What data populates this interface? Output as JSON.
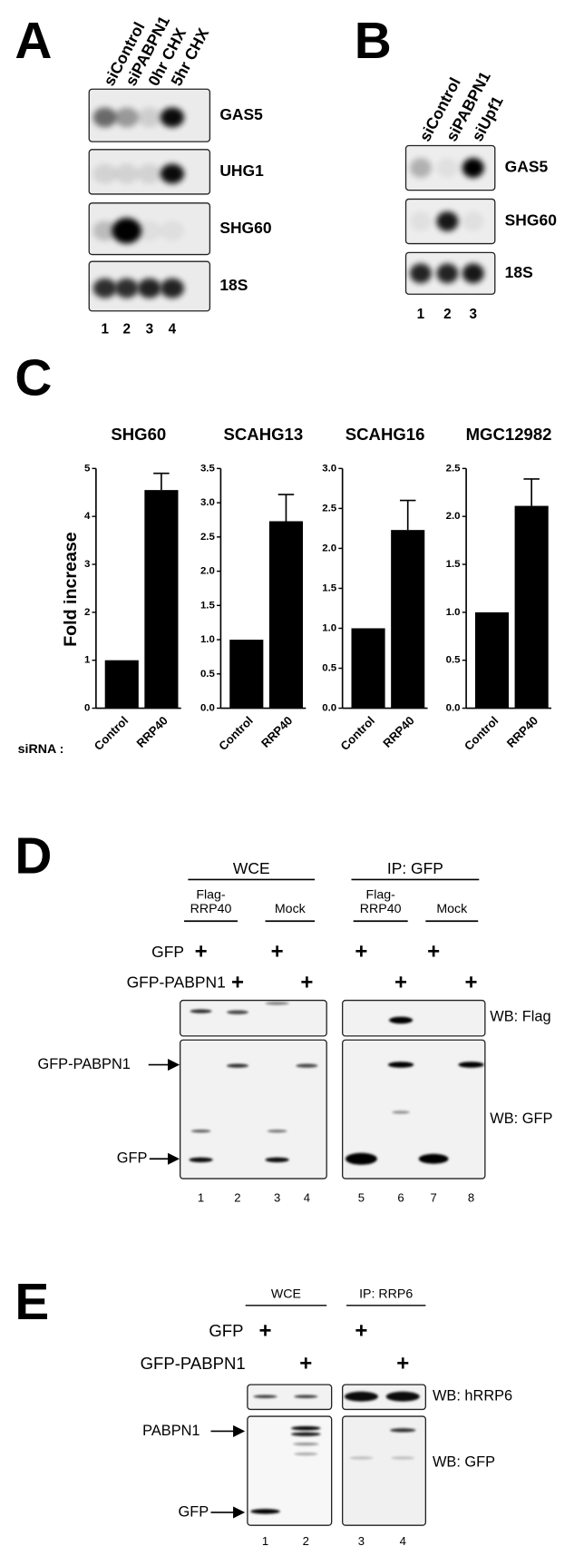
{
  "panel_a": {
    "label": "A",
    "lanes": [
      "siControl",
      "siPABPN1",
      "0hr CHX",
      "5hr CHX"
    ],
    "blots": [
      "GAS5",
      "UHG1",
      "SHG60",
      "18S"
    ],
    "lane_numbers": [
      "1",
      "2",
      "3",
      "4"
    ]
  },
  "panel_b": {
    "label": "B",
    "lanes": [
      "siControl",
      "siPABPN1",
      "siUpf1"
    ],
    "blots": [
      "GAS5",
      "SHG60",
      "18S"
    ],
    "lane_numbers": [
      "1",
      "2",
      "3"
    ]
  },
  "panel_c": {
    "label": "C",
    "y_label": "Fold increase",
    "x_prefix": "siRNA :",
    "charts": [
      {
        "type": "bar",
        "title": "SHG60",
        "categories": [
          "Control",
          "RRP40"
        ],
        "values": [
          1,
          4.55
        ],
        "errors": [
          null,
          0.35
        ],
        "color": "#000000",
        "ylim": [
          0,
          5
        ],
        "yticks": [
          0,
          1,
          2,
          3,
          4,
          5
        ]
      },
      {
        "type": "bar",
        "title": "SCAHG13",
        "categories": [
          "Control",
          "RRP40"
        ],
        "values": [
          1,
          2.73
        ],
        "errors": [
          null,
          0.39
        ],
        "color": "#000000",
        "ylim": [
          0,
          3.5
        ],
        "yticks": [
          {
            "value": 0,
            "label": "0.0"
          },
          0.5,
          {
            "value": 1,
            "label": "1.0"
          },
          1.5,
          {
            "value": 2,
            "label": "2.0"
          },
          2.5,
          {
            "value": 3,
            "label": "3.0"
          },
          3.5
        ]
      },
      {
        "type": "bar",
        "title": "SCAHG16",
        "categories": [
          "Control",
          "RRP40"
        ],
        "values": [
          1,
          2.23
        ],
        "errors": [
          null,
          0.37
        ],
        "color": "#000000",
        "ylim": [
          0,
          3
        ],
        "yticks": [
          {
            "value": 0,
            "label": "0.0"
          },
          0.5,
          {
            "value": 1,
            "label": "1.0"
          },
          1.5,
          {
            "value": 2,
            "label": "2.0"
          },
          2.5,
          {
            "value": 3,
            "label": "3.0"
          }
        ]
      },
      {
        "type": "bar",
        "title": "MGC12982",
        "categories": [
          "Control",
          "RRP40"
        ],
        "values": [
          1,
          2.11
        ],
        "errors": [
          null,
          0.28
        ],
        "color": "#000000",
        "ylim": [
          0,
          2.5
        ],
        "yticks": [
          {
            "value": 0,
            "label": "0.0"
          },
          0.5,
          {
            "value": 1,
            "label": "1.0"
          },
          1.5,
          {
            "value": 2,
            "label": "2.0"
          },
          2.5
        ]
      }
    ]
  },
  "panel_d": {
    "label": "D",
    "groups": [
      {
        "title": "WCE",
        "subgroups": [
          [
            "Flag-",
            "RRP40"
          ],
          [
            "Mock"
          ]
        ]
      },
      {
        "title": "IP: GFP",
        "subgroups": [
          [
            "Flag-",
            "RRP40"
          ],
          [
            "Mock"
          ]
        ]
      }
    ],
    "rows": [
      {
        "label": "GFP",
        "marks": [
          "+",
          null,
          "+",
          null,
          "+",
          null,
          "+",
          null
        ]
      },
      {
        "label": "GFP-PABPN1",
        "marks": [
          null,
          "+",
          null,
          "+",
          null,
          "+",
          null,
          "+"
        ]
      }
    ],
    "wb_labels": [
      "WB: Flag",
      "WB: GFP"
    ],
    "arrows": [
      "GFP-PABPN1",
      "GFP"
    ],
    "lane_numbers": [
      "1",
      "2",
      "3",
      "4",
      "5",
      "6",
      "7",
      "8"
    ]
  },
  "panel_e": {
    "label": "E",
    "groups": [
      "WCE",
      "IP: RRP6"
    ],
    "rows": [
      {
        "label": "GFP",
        "marks": [
          "+",
          null,
          "+",
          null
        ]
      },
      {
        "label": "GFP-PABPN1",
        "marks": [
          null,
          "+",
          null,
          "+"
        ]
      }
    ],
    "wb_labels": [
      "WB: hRRP6",
      "WB: GFP"
    ],
    "arrows": [
      "PABPN1",
      "GFP"
    ],
    "lane_numbers": [
      "1",
      "2",
      "3",
      "4"
    ]
  }
}
